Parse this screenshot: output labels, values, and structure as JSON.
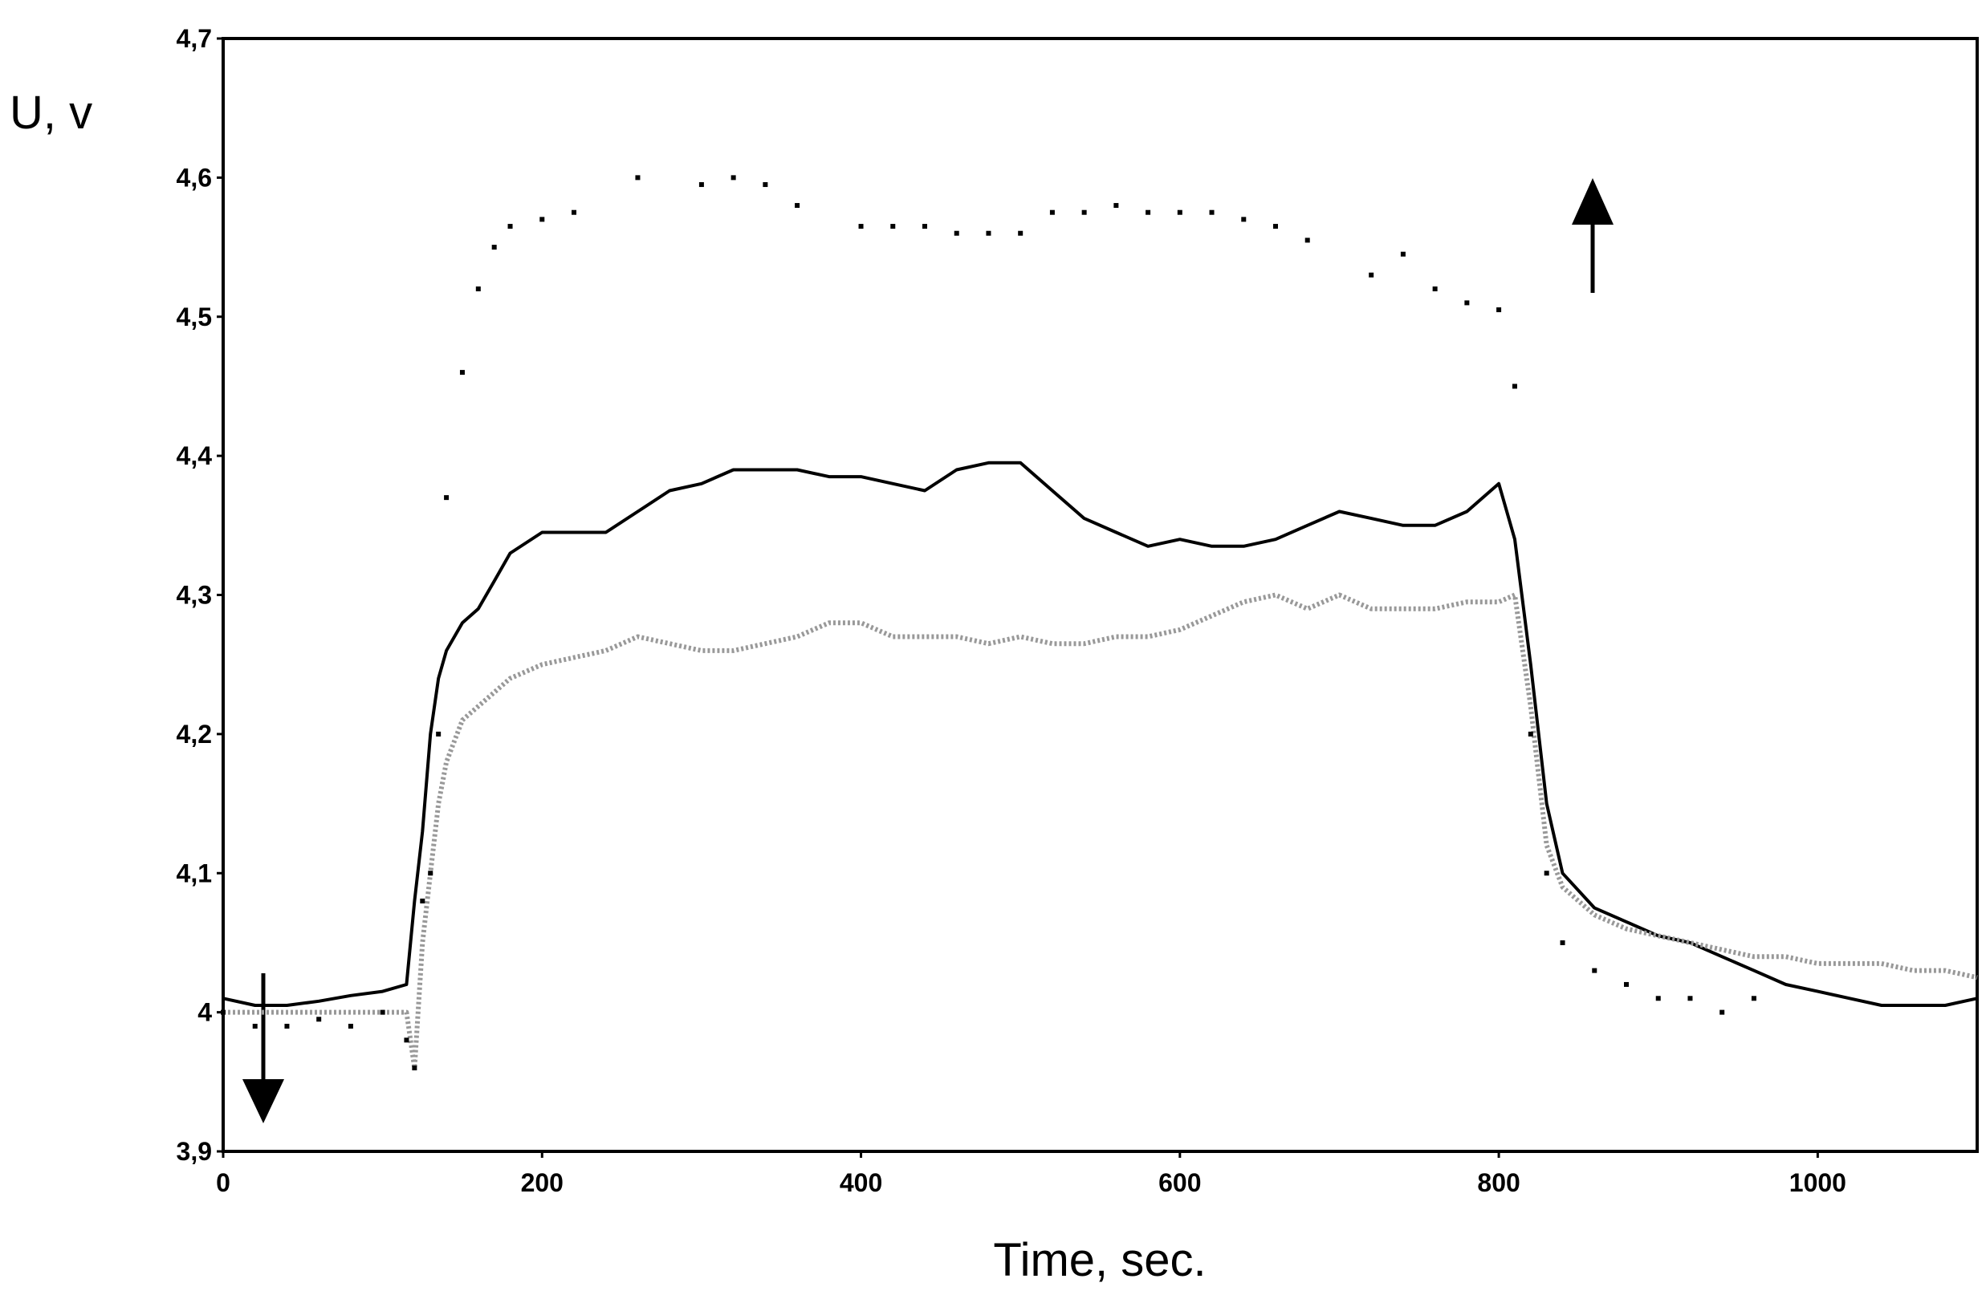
{
  "chart_data": {
    "type": "line",
    "xlabel": "Time, sec.",
    "ylabel": "U, v",
    "xlim": [
      0,
      1100
    ],
    "ylim": [
      3.9,
      4.7
    ],
    "xticks": [
      0,
      200,
      400,
      600,
      800,
      1000
    ],
    "yticks": [
      {
        "value": 3.9,
        "label": "3,9"
      },
      4,
      {
        "value": 4.1,
        "label": "4,1"
      },
      {
        "value": 4.2,
        "label": "4,2"
      },
      {
        "value": 4.3,
        "label": "4,3"
      },
      {
        "value": 4.4,
        "label": "4,4"
      },
      {
        "value": 4.5,
        "label": "4,5"
      },
      {
        "value": 4.6,
        "label": "4,6"
      },
      {
        "value": 4.7,
        "label": "4,7"
      }
    ],
    "x": [
      0,
      20,
      40,
      60,
      80,
      100,
      115,
      120,
      125,
      130,
      135,
      140,
      150,
      160,
      170,
      180,
      200,
      220,
      240,
      260,
      280,
      300,
      320,
      340,
      360,
      380,
      400,
      420,
      440,
      460,
      480,
      500,
      520,
      540,
      560,
      580,
      600,
      620,
      640,
      660,
      680,
      700,
      720,
      740,
      760,
      780,
      800,
      810,
      820,
      830,
      840,
      860,
      880,
      900,
      920,
      940,
      960,
      980,
      1000,
      1020,
      1040,
      1060,
      1080,
      1100
    ],
    "series": [
      {
        "color": "#000000",
        "style": "solid",
        "values": [
          4.01,
          4.005,
          4.005,
          4.008,
          4.012,
          4.015,
          4.02,
          4.08,
          4.13,
          4.2,
          4.24,
          4.26,
          4.28,
          4.29,
          4.31,
          4.33,
          4.345,
          4.345,
          4.345,
          4.36,
          4.375,
          4.38,
          4.39,
          4.39,
          4.39,
          4.385,
          4.385,
          4.38,
          4.375,
          4.39,
          4.395,
          4.395,
          4.375,
          4.355,
          4.345,
          4.335,
          4.34,
          4.335,
          4.335,
          4.34,
          4.35,
          4.36,
          4.355,
          4.35,
          4.35,
          4.36,
          4.38,
          4.34,
          4.25,
          4.15,
          4.1,
          4.075,
          4.065,
          4.055,
          4.05,
          4.04,
          4.03,
          4.02,
          4.015,
          4.01,
          4.005,
          4.005,
          4.005,
          4.01
        ]
      },
      {
        "color": "#999999",
        "style": "dotted",
        "values": [
          4.0,
          4.0,
          4.0,
          4.0,
          4.0,
          4.0,
          4.0,
          3.96,
          4.05,
          4.1,
          4.15,
          4.18,
          4.21,
          4.22,
          4.23,
          4.24,
          4.25,
          4.255,
          4.26,
          4.27,
          4.265,
          4.26,
          4.26,
          4.265,
          4.27,
          4.28,
          4.28,
          4.27,
          4.27,
          4.27,
          4.265,
          4.27,
          4.265,
          4.265,
          4.27,
          4.27,
          4.275,
          4.285,
          4.295,
          4.3,
          4.29,
          4.3,
          4.29,
          4.29,
          4.29,
          4.295,
          4.295,
          4.3,
          4.22,
          4.12,
          4.09,
          4.07,
          4.06,
          4.055,
          4.05,
          4.045,
          4.04,
          4.04,
          4.035,
          4.035,
          4.035,
          4.03,
          4.03,
          4.025
        ]
      },
      {
        "color": "#000000",
        "style": "points",
        "values": [
          4.0,
          3.99,
          3.99,
          3.995,
          3.99,
          4.0,
          3.98,
          3.96,
          4.08,
          4.1,
          4.2,
          4.37,
          4.46,
          4.52,
          4.55,
          4.565,
          4.57,
          4.575,
          null,
          4.6,
          null,
          4.595,
          4.6,
          4.595,
          4.58,
          null,
          4.565,
          4.565,
          4.565,
          4.56,
          4.56,
          4.56,
          4.575,
          4.575,
          4.58,
          4.575,
          4.575,
          4.575,
          4.57,
          4.565,
          4.555,
          null,
          4.53,
          4.545,
          4.52,
          4.51,
          4.505,
          4.45,
          4.2,
          4.1,
          4.05,
          4.03,
          4.02,
          4.01,
          4.01,
          4.0,
          4.01,
          null,
          null,
          null,
          null,
          null,
          null,
          null
        ]
      }
    ]
  }
}
